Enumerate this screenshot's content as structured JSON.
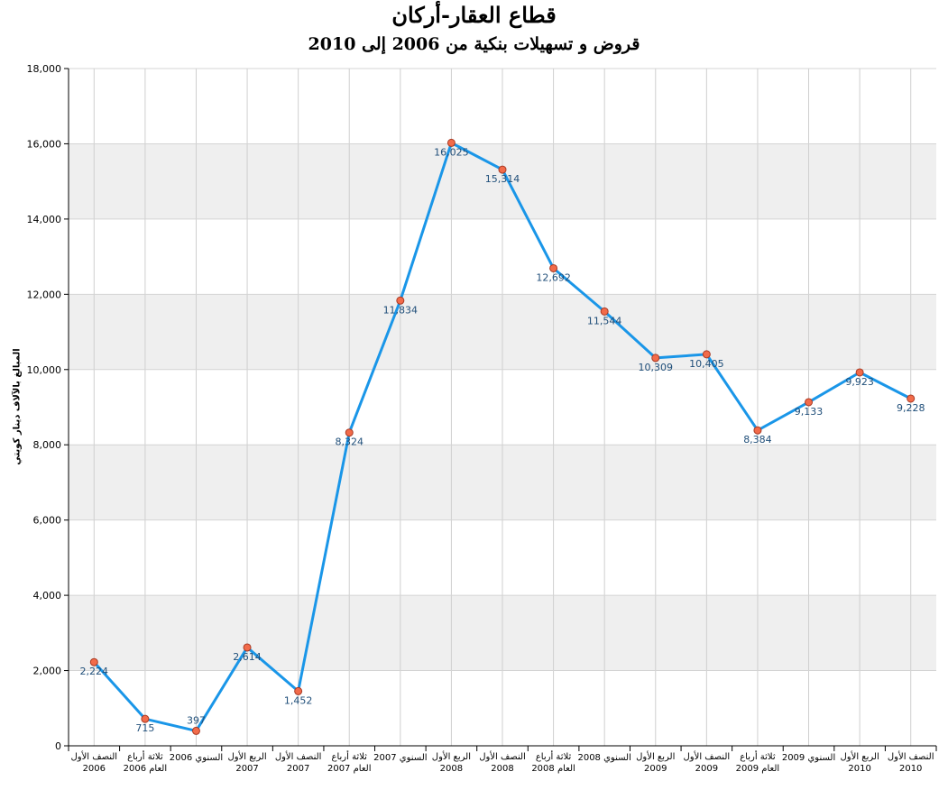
{
  "chart_data": {
    "type": "line",
    "title": "قطاع العقار-أركان",
    "subtitle": "قروض و تسهيلات بنكية من 2006 إلى 2010",
    "ylabel": "المبالغ بالآلاف دينار كويتي",
    "ylim": [
      0,
      18000
    ],
    "yticks": [
      "0",
      "2,000",
      "4,000",
      "6,000",
      "8,000",
      "10,000",
      "12,000",
      "14,000",
      "16,000",
      "18,000"
    ],
    "categories": [
      [
        "النصف الأول",
        "2006"
      ],
      [
        "ثلاثة أرباع",
        "العام 2006"
      ],
      [
        "السنوي 2006"
      ],
      [
        "الربع الأول",
        "2007"
      ],
      [
        "النصف الأول",
        "2007"
      ],
      [
        "ثلاثة أرباع",
        "العام 2007"
      ],
      [
        "السنوي 2007"
      ],
      [
        "الربع الأول",
        "2008"
      ],
      [
        "النصف الأول",
        "2008"
      ],
      [
        "ثلاثة أرباع",
        "العام 2008"
      ],
      [
        "السنوي 2008"
      ],
      [
        "الربع الأول",
        "2009"
      ],
      [
        "النصف الأول",
        "2009"
      ],
      [
        "ثلاثة أرباع",
        "العام 2009"
      ],
      [
        "السنوي 2009"
      ],
      [
        "الربع الأول",
        "2010"
      ],
      [
        "النصف الأول",
        "2010"
      ]
    ],
    "values": [
      2224,
      715,
      397,
      2614,
      1452,
      8324,
      11834,
      16025,
      15314,
      12692,
      11544,
      10309,
      10405,
      8384,
      9133,
      9923,
      9228
    ],
    "labels": [
      "2,224",
      "715",
      "397",
      "2,614",
      "1,452",
      "8,324",
      "11,834",
      "16,025",
      "15,314",
      "12,692",
      "11,544",
      "10,309",
      "10,405",
      "8,384",
      "9,133",
      "9,923",
      "9,228"
    ],
    "grid": true,
    "colors": {
      "line": "#1a96e8",
      "marker": "#f26b4a",
      "marker_edge": "#a83a24",
      "band": "#efefef"
    }
  }
}
